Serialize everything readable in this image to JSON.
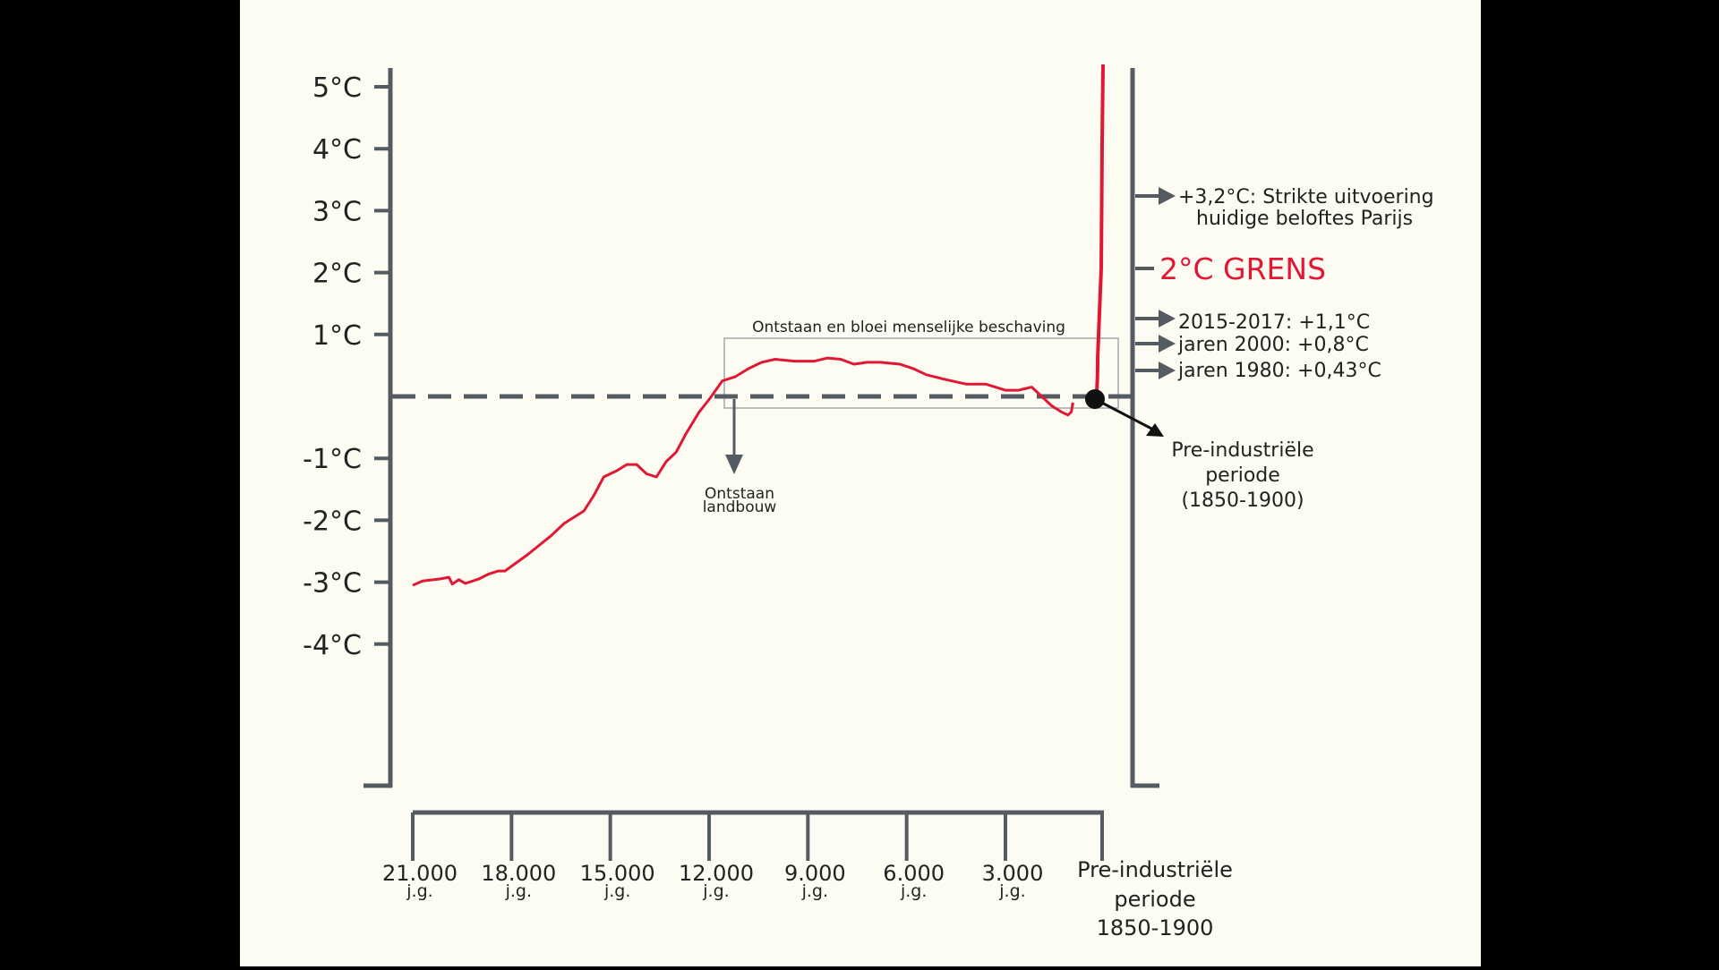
{
  "colors": {
    "background": "#fdfcf3",
    "frame": "#000000",
    "axis": "#555b62",
    "curve": "#e01834",
    "limit": "#e01834",
    "text": "#222222"
  },
  "chart_data": {
    "type": "line",
    "title": "",
    "xlabel": "",
    "ylabel": "",
    "ylim": [
      -4,
      5
    ],
    "xlim": [
      22000,
      0
    ],
    "y_ticks": [
      {
        "value": 5,
        "label": "5°C"
      },
      {
        "value": 4,
        "label": "4°C"
      },
      {
        "value": 3,
        "label": "3°C"
      },
      {
        "value": 2,
        "label": "2°C"
      },
      {
        "value": 1,
        "label": "1°C"
      },
      {
        "value": -1,
        "label": "-1°C"
      },
      {
        "value": -2,
        "label": "-2°C"
      },
      {
        "value": -3,
        "label": "-3°C"
      },
      {
        "value": -4,
        "label": "-4°C"
      }
    ],
    "x_ticks": [
      {
        "value": 21000,
        "label": "21.000",
        "sub": "j.g."
      },
      {
        "value": 18000,
        "label": "18.000",
        "sub": "j.g."
      },
      {
        "value": 15000,
        "label": "15.000",
        "sub": "j.g."
      },
      {
        "value": 12000,
        "label": "12.000",
        "sub": "j.g."
      },
      {
        "value": 9000,
        "label": "9.000",
        "sub": "j.g."
      },
      {
        "value": 6000,
        "label": "6.000",
        "sub": "j.g."
      },
      {
        "value": 3000,
        "label": "3.000",
        "sub": "j.g."
      }
    ],
    "x_end_label": [
      "Pre-industriële",
      "periode",
      "1850-1900"
    ],
    "baseline": {
      "value": 0,
      "style": "dashed"
    },
    "series": [
      {
        "color": "#e01834",
        "x": [
          21000,
          20700,
          20200,
          19900,
          19800,
          19600,
          19400,
          19000,
          18700,
          18400,
          18200,
          17500,
          16800,
          16400,
          15800,
          15500,
          15200,
          14800,
          14500,
          14200,
          13900,
          13600,
          13300,
          13000,
          12700,
          12300,
          12000,
          11600,
          11200,
          10800,
          10400,
          10000,
          9400,
          8800,
          8400,
          8000,
          7600,
          7200,
          6800,
          6200,
          5800,
          5400,
          4800,
          4200,
          3600,
          3000,
          2600,
          2200,
          1900,
          1600,
          1300,
          1100,
          1000,
          950
        ],
        "y": [
          -3.05,
          -2.98,
          -2.95,
          -2.92,
          -3.03,
          -2.96,
          -3.02,
          -2.95,
          -2.87,
          -2.82,
          -2.82,
          -2.55,
          -2.25,
          -2.05,
          -1.85,
          -1.6,
          -1.3,
          -1.2,
          -1.1,
          -1.1,
          -1.25,
          -1.3,
          -1.05,
          -0.9,
          -0.6,
          -0.25,
          -0.05,
          0.25,
          0.32,
          0.45,
          0.55,
          0.6,
          0.57,
          0.57,
          0.62,
          0.6,
          0.52,
          0.55,
          0.55,
          0.52,
          0.45,
          0.35,
          0.27,
          0.2,
          0.2,
          0.1,
          0.1,
          0.15,
          0.0,
          -0.15,
          -0.25,
          -0.3,
          -0.25,
          -0.1
        ]
      }
    ],
    "annotations": {
      "ice_age_box": "Ontstaan en bloei menselijke beschaving",
      "agriculture": [
        "Ontstaan",
        "landbouw"
      ],
      "preindustrial": [
        "Pre-industriële",
        "periode",
        "(1850-1900)"
      ],
      "paris": [
        "+3,2°C: Strikte uitvoering",
        "huidige beloftes Parijs"
      ],
      "limit": "2°C GRENS",
      "y2015": "2015-2017: +1,1°C",
      "y2000": "jaren 2000: +0,8°C",
      "y1980": "jaren 1980: +0,43°C"
    }
  }
}
